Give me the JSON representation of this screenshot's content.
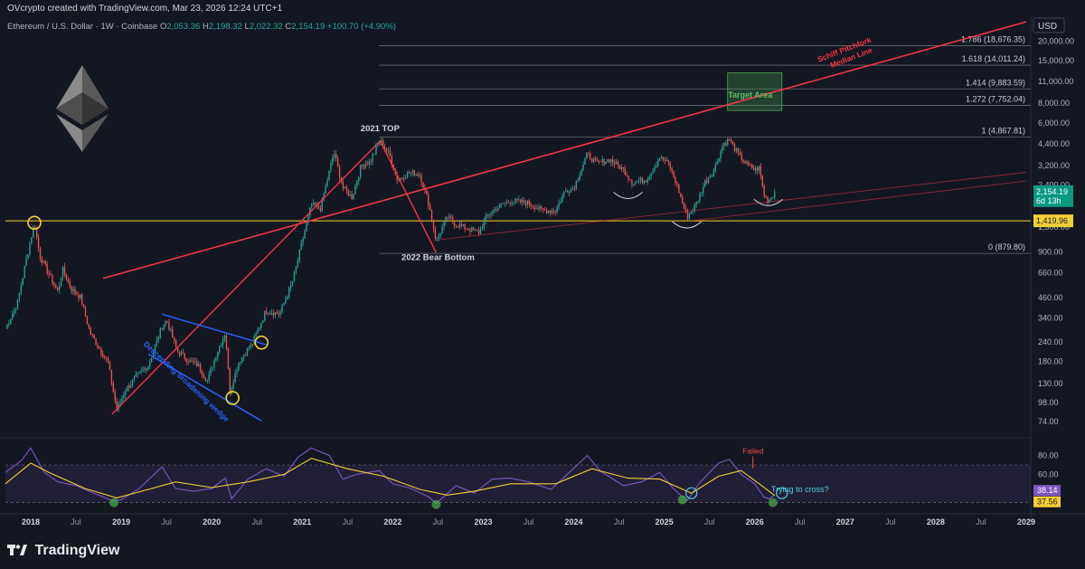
{
  "header": {
    "attribution": "OVcrypto created with TradingView.com, Mar 23, 2026 12:24 UTC+1"
  },
  "footer": {
    "brand": "TradingView"
  },
  "colors": {
    "background": "#131722",
    "up": "#26a69a",
    "down": "#ef5350",
    "pitchfork": "#f23645",
    "wedge": "#2962ff",
    "support": "#f5d033",
    "rsi": "#7e57c2",
    "rsi_ma": "#f5d033",
    "price_badge": "#089981"
  },
  "chart_data": [
    {
      "type": "candlestick",
      "title": "Ethereum / U.S. Dollar · 1W · Coinbase",
      "ohlc_last": {
        "open_label": "O",
        "open": "2,053.36",
        "high_label": "H",
        "high": "2,198.32",
        "low_label": "L",
        "low": "2,022.32",
        "close_label": "C",
        "close": "2,154.19",
        "change": "+100.70 (+4.90%)"
      },
      "currency": "USD",
      "y_scale": "log",
      "yaxis_ticks": [
        "20,000.00",
        "15,000.00",
        "11,000.00",
        "8,000.00",
        "6,000.00",
        "4,400.00",
        "3,200.00",
        "2,400.00",
        "1,300.00",
        "900.00",
        "660.00",
        "460.00",
        "340.00",
        "240.00",
        "180.00",
        "130.00",
        "98.00",
        "74.00"
      ],
      "xaxis_ticks": [
        {
          "label": "2018",
          "t": 2018.0,
          "bold": true
        },
        {
          "label": "Jul",
          "t": 2018.5
        },
        {
          "label": "2019",
          "t": 2019.0,
          "bold": true
        },
        {
          "label": "Jul",
          "t": 2019.5
        },
        {
          "label": "2020",
          "t": 2020.0,
          "bold": true
        },
        {
          "label": "Jul",
          "t": 2020.5
        },
        {
          "label": "2021",
          "t": 2021.0,
          "bold": true
        },
        {
          "label": "Jul",
          "t": 2021.5
        },
        {
          "label": "2022",
          "t": 2022.0,
          "bold": true
        },
        {
          "label": "Jul",
          "t": 2022.5
        },
        {
          "label": "2023",
          "t": 2023.0,
          "bold": true
        },
        {
          "label": "Jul",
          "t": 2023.5
        },
        {
          "label": "2024",
          "t": 2024.0,
          "bold": true
        },
        {
          "label": "Jul",
          "t": 2024.5
        },
        {
          "label": "2025",
          "t": 2025.0,
          "bold": true
        },
        {
          "label": "Jul",
          "t": 2025.5
        },
        {
          "label": "2026",
          "t": 2026.0,
          "bold": true
        },
        {
          "label": "Jul",
          "t": 2026.5
        },
        {
          "label": "2027",
          "t": 2027.0,
          "bold": true
        },
        {
          "label": "Jul",
          "t": 2027.5
        },
        {
          "label": "2028",
          "t": 2028.0,
          "bold": true
        },
        {
          "label": "Jul",
          "t": 2028.5
        },
        {
          "label": "2029",
          "t": 2029.0,
          "bold": true
        }
      ],
      "price_path": [
        {
          "t": 2017.72,
          "p": 290
        },
        {
          "t": 2017.85,
          "p": 420
        },
        {
          "t": 2017.95,
          "p": 800
        },
        {
          "t": 2018.04,
          "p": 1380
        },
        {
          "t": 2018.1,
          "p": 850
        },
        {
          "t": 2018.2,
          "p": 650
        },
        {
          "t": 2018.3,
          "p": 500
        },
        {
          "t": 2018.35,
          "p": 700
        },
        {
          "t": 2018.45,
          "p": 520
        },
        {
          "t": 2018.55,
          "p": 460
        },
        {
          "t": 2018.65,
          "p": 280
        },
        {
          "t": 2018.75,
          "p": 220
        },
        {
          "t": 2018.85,
          "p": 180
        },
        {
          "t": 2018.95,
          "p": 88
        },
        {
          "t": 2019.05,
          "p": 120
        },
        {
          "t": 2019.15,
          "p": 140
        },
        {
          "t": 2019.3,
          "p": 170
        },
        {
          "t": 2019.45,
          "p": 300
        },
        {
          "t": 2019.5,
          "p": 330
        },
        {
          "t": 2019.62,
          "p": 210
        },
        {
          "t": 2019.75,
          "p": 180
        },
        {
          "t": 2019.85,
          "p": 170
        },
        {
          "t": 2019.95,
          "p": 135
        },
        {
          "t": 2020.05,
          "p": 200
        },
        {
          "t": 2020.15,
          "p": 275
        },
        {
          "t": 2020.2,
          "p": 115
        },
        {
          "t": 2020.3,
          "p": 180
        },
        {
          "t": 2020.45,
          "p": 235
        },
        {
          "t": 2020.6,
          "p": 380
        },
        {
          "t": 2020.75,
          "p": 360
        },
        {
          "t": 2020.9,
          "p": 600
        },
        {
          "t": 2021.0,
          "p": 1050
        },
        {
          "t": 2021.1,
          "p": 1800
        },
        {
          "t": 2021.2,
          "p": 1700
        },
        {
          "t": 2021.35,
          "p": 3900
        },
        {
          "t": 2021.45,
          "p": 2300
        },
        {
          "t": 2021.55,
          "p": 2000
        },
        {
          "t": 2021.65,
          "p": 3200
        },
        {
          "t": 2021.75,
          "p": 3400
        },
        {
          "t": 2021.86,
          "p": 4600
        },
        {
          "t": 2021.96,
          "p": 3800
        },
        {
          "t": 2022.05,
          "p": 2600
        },
        {
          "t": 2022.2,
          "p": 2900
        },
        {
          "t": 2022.3,
          "p": 2800
        },
        {
          "t": 2022.4,
          "p": 1800
        },
        {
          "t": 2022.48,
          "p": 1050
        },
        {
          "t": 2022.6,
          "p": 1500
        },
        {
          "t": 2022.7,
          "p": 1350
        },
        {
          "t": 2022.85,
          "p": 1250
        },
        {
          "t": 2022.95,
          "p": 1200
        },
        {
          "t": 2023.05,
          "p": 1550
        },
        {
          "t": 2023.2,
          "p": 1800
        },
        {
          "t": 2023.3,
          "p": 1900
        },
        {
          "t": 2023.5,
          "p": 1850
        },
        {
          "t": 2023.65,
          "p": 1650
        },
        {
          "t": 2023.8,
          "p": 1650
        },
        {
          "t": 2023.9,
          "p": 2200
        },
        {
          "t": 2024.0,
          "p": 2300
        },
        {
          "t": 2024.15,
          "p": 3800
        },
        {
          "t": 2024.25,
          "p": 3300
        },
        {
          "t": 2024.4,
          "p": 3500
        },
        {
          "t": 2024.55,
          "p": 3000
        },
        {
          "t": 2024.65,
          "p": 2500
        },
        {
          "t": 2024.8,
          "p": 2600
        },
        {
          "t": 2024.95,
          "p": 3600
        },
        {
          "t": 2025.05,
          "p": 3300
        },
        {
          "t": 2025.15,
          "p": 2300
        },
        {
          "t": 2025.25,
          "p": 1500
        },
        {
          "t": 2025.35,
          "p": 1800
        },
        {
          "t": 2025.45,
          "p": 2500
        },
        {
          "t": 2025.55,
          "p": 3000
        },
        {
          "t": 2025.65,
          "p": 4400
        },
        {
          "t": 2025.72,
          "p": 4700
        },
        {
          "t": 2025.8,
          "p": 3900
        },
        {
          "t": 2025.9,
          "p": 3300
        },
        {
          "t": 2026.0,
          "p": 3000
        },
        {
          "t": 2026.05,
          "p": 3100
        },
        {
          "t": 2026.1,
          "p": 2100
        },
        {
          "t": 2026.15,
          "p": 1900
        },
        {
          "t": 2026.22,
          "p": 2154.19
        }
      ],
      "right_labels": [
        {
          "text": "2,154.19",
          "sub": "6d 13h",
          "price": 2154.19,
          "kind": "last"
        },
        {
          "text": "1,419.96",
          "price": 1419.96,
          "kind": "level"
        }
      ],
      "fib_levels": [
        {
          "label": "1.786 (18,676.35)",
          "price": 18676.35
        },
        {
          "label": "1.618 (14,011.24)",
          "price": 14011.24
        },
        {
          "label": "1.414 (9,883.59)",
          "price": 9883.59
        },
        {
          "label": "1.272 (7,752.04)",
          "price": 7752.04
        },
        {
          "label": "1 (4,867.81)",
          "price": 4867.81
        },
        {
          "label": "0 (879.80)",
          "price": 879.8
        }
      ],
      "fib_start_t": 2021.85,
      "horizontal_level": {
        "price": 1419.96
      },
      "annotations": [
        {
          "text": "2021 TOP",
          "t": 2021.86,
          "price": 5300
        },
        {
          "text": "2022 Bear Bottom",
          "t": 2022.5,
          "price": 800
        },
        {
          "text": "Target Area",
          "t": 2025.95,
          "price": 8700
        },
        {
          "text": "Schiff Pitchfork Median Line",
          "t": 2027.0,
          "price": 17000
        },
        {
          "text": "Descending broadening wedge",
          "t": 2019.7,
          "price": 130
        }
      ],
      "target_box": {
        "t0": 2025.7,
        "t1": 2026.3,
        "p0": 7200,
        "p1": 12500
      },
      "pitchfork": {
        "median": [
          {
            "t": 2018.8,
            "p": 610
          },
          {
            "t": 2029.0,
            "p": 26500
          }
        ],
        "legs": [
          [
            {
              "t": 2018.9,
              "p": 83
            },
            {
              "t": 2021.86,
              "p": 4600
            },
            {
              "t": 2022.48,
              "p": 890
            }
          ],
          [
            {
              "t": 2022.48,
              "p": 1070
            },
            {
              "t": 2029.0,
              "p": 2900
            }
          ],
          [
            {
              "t": 2025.3,
              "p": 1420
            },
            {
              "t": 2029.0,
              "p": 2550
            }
          ]
        ]
      },
      "wedge": {
        "upper": [
          {
            "t": 2019.45,
            "p": 360
          },
          {
            "t": 2020.6,
            "p": 230
          }
        ],
        "lower": [
          {
            "t": 2019.3,
            "p": 200
          },
          {
            "t": 2020.55,
            "p": 75
          }
        ]
      },
      "circles": [
        {
          "t": 2018.04,
          "p": 1380
        },
        {
          "t": 2020.23,
          "p": 105
        },
        {
          "t": 2020.55,
          "p": 237
        }
      ],
      "arcs": [
        {
          "t": 2024.6,
          "p": 2050
        },
        {
          "t": 2025.25,
          "p": 1330
        },
        {
          "t": 2026.15,
          "p": 1850
        }
      ]
    },
    {
      "type": "line",
      "title": "RSI",
      "ylim": [
        20,
        95
      ],
      "yaxis_ticks": [
        "80.00",
        "60.00",
        "40.00"
      ],
      "band": [
        30,
        70
      ],
      "series": [
        {
          "values": [
            {
              "t": 2017.72,
              "v": 62
            },
            {
              "t": 2017.9,
              "v": 75
            },
            {
              "t": 2018.0,
              "v": 88
            },
            {
              "t": 2018.15,
              "v": 62
            },
            {
              "t": 2018.3,
              "v": 52
            },
            {
              "t": 2018.5,
              "v": 48
            },
            {
              "t": 2018.7,
              "v": 40
            },
            {
              "t": 2018.9,
              "v": 32
            },
            {
              "t": 2019.0,
              "v": 33
            },
            {
              "t": 2019.2,
              "v": 45
            },
            {
              "t": 2019.45,
              "v": 68
            },
            {
              "t": 2019.6,
              "v": 45
            },
            {
              "t": 2019.8,
              "v": 42
            },
            {
              "t": 2020.0,
              "v": 45
            },
            {
              "t": 2020.15,
              "v": 56
            },
            {
              "t": 2020.22,
              "v": 34
            },
            {
              "t": 2020.4,
              "v": 55
            },
            {
              "t": 2020.6,
              "v": 66
            },
            {
              "t": 2020.8,
              "v": 58
            },
            {
              "t": 2020.95,
              "v": 78
            },
            {
              "t": 2021.1,
              "v": 88
            },
            {
              "t": 2021.3,
              "v": 80
            },
            {
              "t": 2021.45,
              "v": 55
            },
            {
              "t": 2021.6,
              "v": 60
            },
            {
              "t": 2021.85,
              "v": 64
            },
            {
              "t": 2022.0,
              "v": 50
            },
            {
              "t": 2022.2,
              "v": 45
            },
            {
              "t": 2022.4,
              "v": 36
            },
            {
              "t": 2022.48,
              "v": 29
            },
            {
              "t": 2022.7,
              "v": 48
            },
            {
              "t": 2022.9,
              "v": 40
            },
            {
              "t": 2023.1,
              "v": 55
            },
            {
              "t": 2023.3,
              "v": 56
            },
            {
              "t": 2023.5,
              "v": 52
            },
            {
              "t": 2023.75,
              "v": 44
            },
            {
              "t": 2023.95,
              "v": 62
            },
            {
              "t": 2024.15,
              "v": 80
            },
            {
              "t": 2024.3,
              "v": 63
            },
            {
              "t": 2024.55,
              "v": 48
            },
            {
              "t": 2024.75,
              "v": 52
            },
            {
              "t": 2024.95,
              "v": 62
            },
            {
              "t": 2025.1,
              "v": 45
            },
            {
              "t": 2025.25,
              "v": 32
            },
            {
              "t": 2025.4,
              "v": 52
            },
            {
              "t": 2025.6,
              "v": 72
            },
            {
              "t": 2025.72,
              "v": 76
            },
            {
              "t": 2025.85,
              "v": 60
            },
            {
              "t": 2026.0,
              "v": 50
            },
            {
              "t": 2026.1,
              "v": 36
            },
            {
              "t": 2026.16,
              "v": 34
            },
            {
              "t": 2026.22,
              "v": 38.14
            }
          ]
        },
        {
          "values": [
            {
              "t": 2017.72,
              "v": 50
            },
            {
              "t": 2018.0,
              "v": 72
            },
            {
              "t": 2018.2,
              "v": 62
            },
            {
              "t": 2018.6,
              "v": 45
            },
            {
              "t": 2018.95,
              "v": 35
            },
            {
              "t": 2019.3,
              "v": 44
            },
            {
              "t": 2019.6,
              "v": 52
            },
            {
              "t": 2020.0,
              "v": 46
            },
            {
              "t": 2020.4,
              "v": 52
            },
            {
              "t": 2020.8,
              "v": 60
            },
            {
              "t": 2021.1,
              "v": 77
            },
            {
              "t": 2021.5,
              "v": 66
            },
            {
              "t": 2021.9,
              "v": 58
            },
            {
              "t": 2022.3,
              "v": 44
            },
            {
              "t": 2022.6,
              "v": 38
            },
            {
              "t": 2022.9,
              "v": 42
            },
            {
              "t": 2023.3,
              "v": 50
            },
            {
              "t": 2023.8,
              "v": 50
            },
            {
              "t": 2024.2,
              "v": 66
            },
            {
              "t": 2024.6,
              "v": 56
            },
            {
              "t": 2024.95,
              "v": 55
            },
            {
              "t": 2025.3,
              "v": 40
            },
            {
              "t": 2025.6,
              "v": 58
            },
            {
              "t": 2025.85,
              "v": 64
            },
            {
              "t": 2026.05,
              "v": 50
            },
            {
              "t": 2026.22,
              "v": 37.56
            }
          ]
        }
      ],
      "right_labels": [
        {
          "text": "38.14",
          "value": 38.14,
          "kind": "rsi"
        },
        {
          "text": "37.56",
          "value": 37.56,
          "kind": "ma"
        }
      ],
      "annotations": [
        {
          "text": "Failed",
          "t": 2025.98,
          "v": 82
        },
        {
          "text": "Trying to cross?",
          "t": 2026.5,
          "v": 41
        }
      ],
      "dots": [
        {
          "t": 2018.92,
          "v": 30
        },
        {
          "t": 2022.48,
          "v": 28
        },
        {
          "t": 2025.2,
          "v": 33
        },
        {
          "t": 2026.2,
          "v": 30
        }
      ],
      "rings": [
        {
          "t": 2025.3,
          "v": 40
        },
        {
          "t": 2026.3,
          "v": 40
        }
      ]
    }
  ]
}
